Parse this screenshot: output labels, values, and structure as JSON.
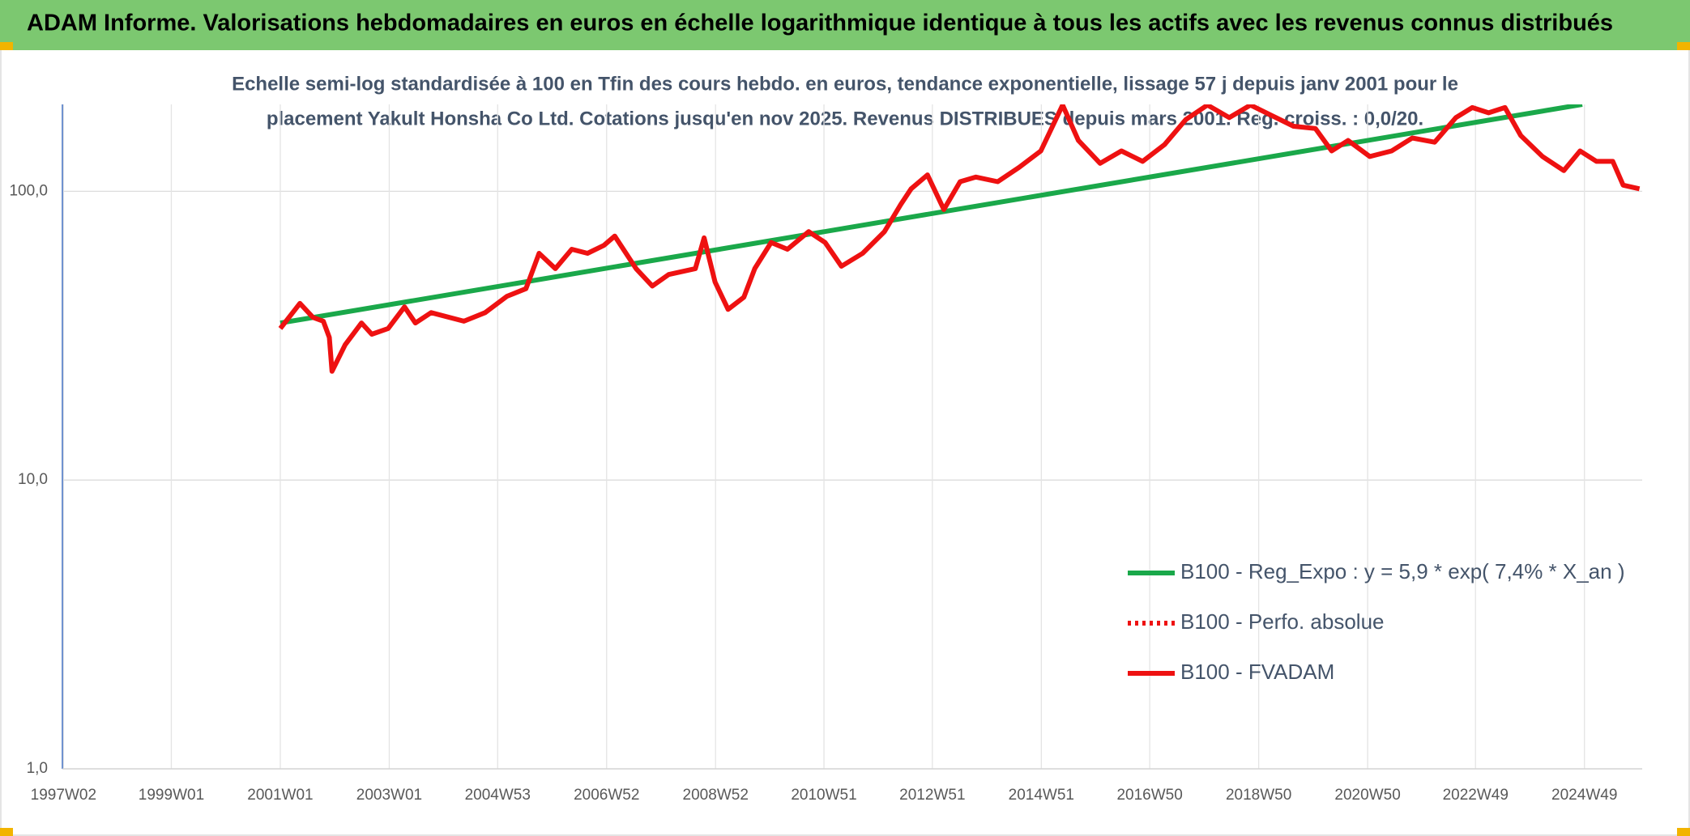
{
  "chart_data": {
    "type": "line",
    "title": "ADAM Informe. Valorisations hebdomadaires en euros en échelle logarithmique identique à tous les actifs avec les revenus connus distribués",
    "subtitle": [
      "Echelle semi-log standardisée à 100 en Tfin des cours hebdo. en euros, tendance exponentielle, lissage 57 j depuis janv 2001 pour le",
      "placement Yakult Honsha Co Ltd. Cotations jusqu'en nov 2025. Revenus DISTRIBUES depuis mars 2001. Reg. croiss. : 0,0/20."
    ],
    "log_scale": true,
    "grid": true,
    "legend": "lower right",
    "xlim": [
      1997.0,
      2026.0
    ],
    "xticks": [
      {
        "value": 1997.02,
        "label": "1997W02"
      },
      {
        "value": 1999.0,
        "label": "1999W01"
      },
      {
        "value": 2001.0,
        "label": "2001W01"
      },
      {
        "value": 2003.0,
        "label": "2003W01"
      },
      {
        "value": 2004.99,
        "label": "2004W53"
      },
      {
        "value": 2006.99,
        "label": "2006W52"
      },
      {
        "value": 2008.99,
        "label": "2008W52"
      },
      {
        "value": 2010.98,
        "label": "2010W51"
      },
      {
        "value": 2012.97,
        "label": "2012W51"
      },
      {
        "value": 2014.97,
        "label": "2014W51"
      },
      {
        "value": 2016.96,
        "label": "2016W50"
      },
      {
        "value": 2018.96,
        "label": "2018W50"
      },
      {
        "value": 2020.96,
        "label": "2020W50"
      },
      {
        "value": 2022.94,
        "label": "2022W49"
      },
      {
        "value": 2024.94,
        "label": "2024W49"
      }
    ],
    "ylim": [
      1,
      200
    ],
    "yticks": [
      {
        "value": 1,
        "label": "1,0"
      },
      {
        "value": 10,
        "label": "10,0"
      },
      {
        "value": 100,
        "label": "100,0"
      }
    ],
    "series": [
      {
        "name": "B100 - Reg_Expo : y = 5,9 * exp( 7,4% *  X_an )",
        "color": "#1aa84a",
        "style": "solid",
        "x": [
          2001.0,
          2024.9
        ],
        "values": [
          35,
          200
        ]
      },
      {
        "name": "B100 - Perfo. absolue",
        "color": "#ee1111",
        "style": "dotted",
        "x": [],
        "values": []
      },
      {
        "name": "B100 - FVADAM",
        "color": "#ee1111",
        "style": "solid",
        "x": [
          2001.0,
          2001.36,
          2001.6,
          2001.79,
          2001.9,
          2001.95,
          2002.19,
          2002.49,
          2002.68,
          2002.98,
          2003.28,
          2003.48,
          2003.77,
          2004.37,
          2004.76,
          2005.16,
          2005.51,
          2005.75,
          2006.05,
          2006.35,
          2006.64,
          2006.94,
          2007.14,
          2007.53,
          2007.83,
          2008.13,
          2008.62,
          2008.78,
          2008.98,
          2009.22,
          2009.51,
          2009.71,
          2010.01,
          2010.31,
          2010.7,
          2011.0,
          2011.3,
          2011.69,
          2012.09,
          2012.39,
          2012.58,
          2012.88,
          2013.18,
          2013.48,
          2013.77,
          2014.17,
          2014.56,
          2014.96,
          2015.36,
          2015.65,
          2016.05,
          2016.44,
          2016.83,
          2017.23,
          2017.62,
          2018.02,
          2018.42,
          2018.81,
          2019.2,
          2019.6,
          2020.0,
          2020.3,
          2020.6,
          2021.0,
          2021.4,
          2021.78,
          2022.19,
          2022.58,
          2022.88,
          2023.18,
          2023.48,
          2023.77,
          2024.17,
          2024.56,
          2024.86,
          2025.16,
          2025.46,
          2025.65,
          2025.95
        ],
        "values": [
          33.5,
          40.9,
          36.6,
          35.5,
          31.2,
          23.8,
          29.4,
          35,
          32,
          33.5,
          39.8,
          35,
          38,
          35.5,
          38,
          43.3,
          46,
          61,
          54,
          63,
          61,
          65,
          70,
          54,
          47,
          51.5,
          54,
          69,
          48.5,
          39,
          43,
          54,
          66.5,
          63,
          72.5,
          66.5,
          55,
          61,
          72.5,
          90,
          102,
          114,
          86.5,
          108,
          112,
          108,
          121,
          138,
          199,
          150,
          125,
          138,
          127,
          145,
          177,
          199,
          180,
          199,
          183,
          168,
          165,
          138,
          150,
          132,
          138,
          153,
          148,
          180,
          195,
          187,
          195,
          156,
          132,
          118,
          138,
          127,
          127,
          105,
          102
        ]
      }
    ]
  }
}
